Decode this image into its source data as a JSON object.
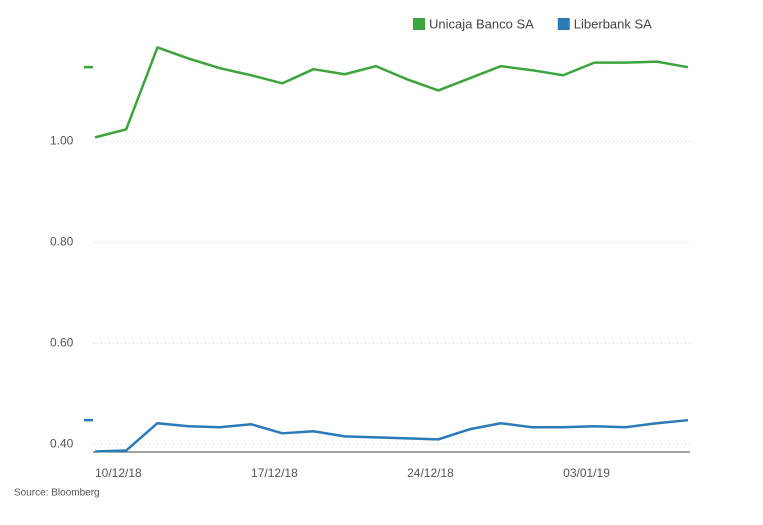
{
  "chart_data": {
    "type": "line",
    "categories": [
      "10/12/18",
      null,
      null,
      null,
      null,
      "17/12/18",
      null,
      null,
      null,
      null,
      "24/12/18",
      null,
      null,
      null,
      null,
      "03/01/19",
      null,
      null,
      null,
      null
    ],
    "series": [
      {
        "name": "Unicaja Banco SA",
        "color": "#3ba53b",
        "values": [
          1.008,
          1.024,
          1.186,
          1.164,
          1.145,
          1.131,
          1.115,
          1.143,
          1.133,
          1.149,
          1.123,
          1.101,
          1.125,
          1.149,
          1.141,
          1.131,
          1.156,
          1.156,
          1.158,
          1.147
        ]
      },
      {
        "name": "Liberbank SA",
        "color": "#2b7bb9",
        "values": [
          0.386,
          0.388,
          0.442,
          0.436,
          0.434,
          0.44,
          0.422,
          0.426,
          0.416,
          0.414,
          0.412,
          0.41,
          0.43,
          0.442,
          0.434,
          0.434,
          0.436,
          0.434,
          0.442,
          0.448
        ]
      }
    ],
    "ylim": [
      0.385,
      1.28
    ],
    "yticks": [
      {
        "value": 0.4,
        "label": "0.40"
      },
      {
        "value": 0.6,
        "label": "0.60"
      },
      {
        "value": 0.8,
        "label": "0.80"
      },
      {
        "value": 1,
        "label": "1.00"
      }
    ],
    "grid": true,
    "legend": "top-right",
    "source": "Source: Bloomberg"
  }
}
